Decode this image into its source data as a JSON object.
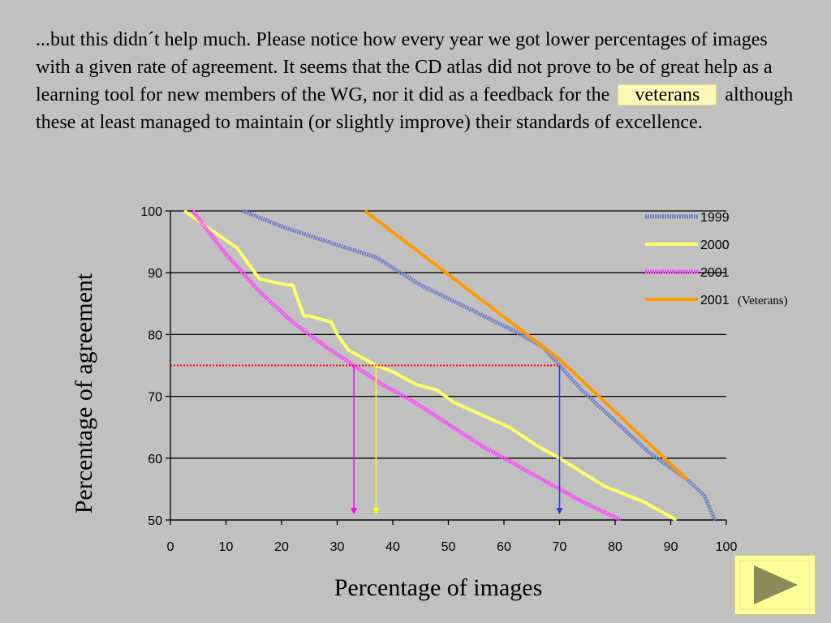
{
  "slide": {
    "text_part1": "...but this didn´t help much. Please notice how every year we got lower percentages of images with a given rate of agreement. It seems that the CD atlas did not prove to be of great help as a learning tool for new members of the WG, nor it did as a feedback for the",
    "highlight": "veterans",
    "text_part2": "although these at least managed to maintain (or slightly improve) their standards of excellence."
  },
  "chart_data": {
    "type": "line",
    "xlabel": "Percentage of images",
    "ylabel": "Percentage of agreement",
    "xlim": [
      0,
      100
    ],
    "ylim": [
      50,
      100
    ],
    "xticks": [
      0,
      10,
      20,
      30,
      40,
      50,
      60,
      70,
      80,
      90,
      100
    ],
    "yticks": [
      50,
      60,
      70,
      80,
      90,
      100
    ],
    "grid": "horizontal",
    "legend_position": "top-right",
    "series": [
      {
        "name": "1999",
        "color": "#6f7fc8",
        "style": "textured",
        "x": [
          13,
          20,
          30,
          37,
          45,
          53,
          62,
          67,
          70,
          74,
          80,
          86,
          93,
          96,
          97,
          98
        ],
        "y": [
          100,
          97.5,
          94.5,
          92.5,
          88,
          84.5,
          80.5,
          78,
          75,
          71,
          66,
          61,
          56.5,
          54,
          52,
          50
        ]
      },
      {
        "name": "2000",
        "color": "#ffff66",
        "style": "thick",
        "x": [
          2.5,
          12,
          16,
          21,
          22,
          24,
          25,
          29,
          30,
          32,
          37,
          40,
          44,
          48,
          51,
          56,
          61,
          66,
          70,
          78,
          85,
          91
        ],
        "y": [
          100,
          94,
          89,
          88,
          88,
          83,
          83,
          82,
          80,
          77.5,
          75,
          74,
          72,
          71,
          69,
          67,
          65,
          62,
          60,
          55.5,
          53,
          50
        ]
      },
      {
        "name": "2001",
        "color": "#ff44ff",
        "style": "textured",
        "x": [
          4,
          10,
          16,
          22,
          28,
          33,
          38,
          44,
          50,
          56,
          62,
          68,
          74,
          81
        ],
        "y": [
          100,
          93,
          87,
          82,
          78,
          75,
          72,
          69,
          65.5,
          62,
          59,
          56,
          53,
          50
        ]
      },
      {
        "name": "2001",
        "label_suffix": "(Veterans)",
        "color": "#ff9900",
        "style": "solid",
        "x": [
          35,
          70,
          93
        ],
        "y": [
          100,
          76,
          56.5
        ]
      }
    ],
    "threshold": {
      "y": 75,
      "color": "#ff0000",
      "style": "dotted"
    },
    "markers": [
      {
        "x": 33,
        "color": "#ff00ff"
      },
      {
        "x": 37,
        "color": "#ffff00"
      },
      {
        "x": 70,
        "color": "#3333cc"
      }
    ]
  },
  "nav": {
    "icon": "play-triangle-icon"
  }
}
